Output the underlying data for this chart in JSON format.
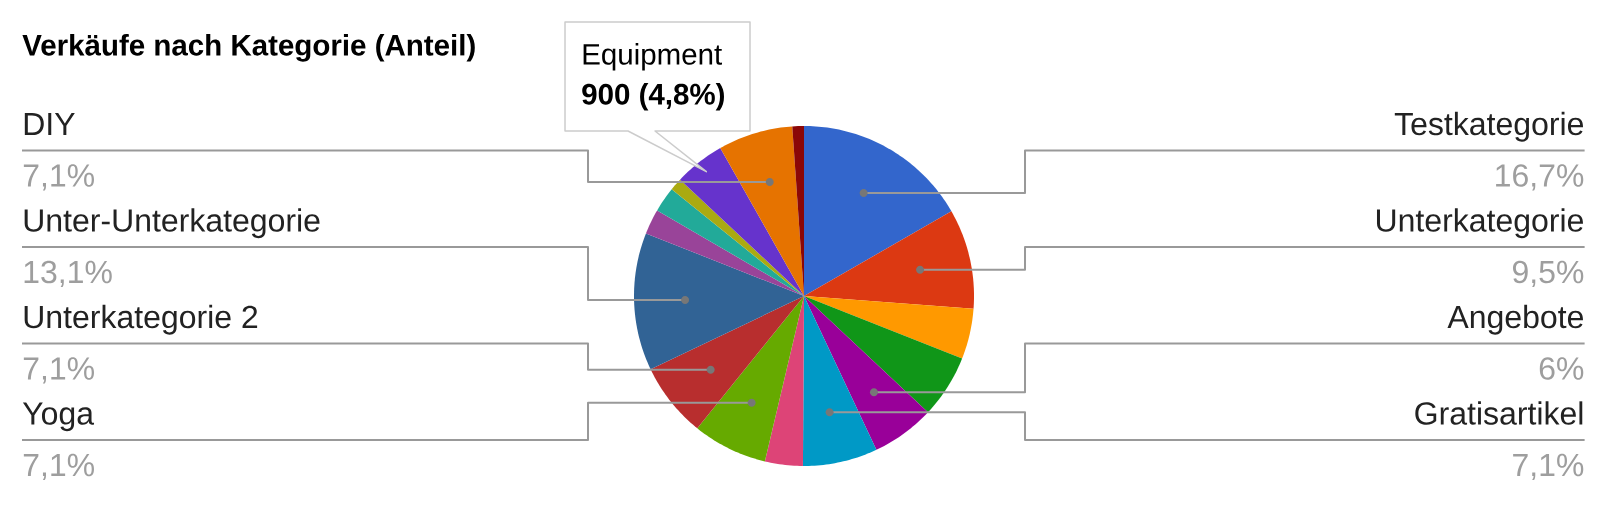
{
  "chart_data": {
    "type": "pie",
    "title": "Verkäufe nach Kategorie (Anteil)",
    "categories": [
      "Testkategorie",
      "Unterkategorie",
      null,
      null,
      "Angebote",
      "Gratisartikel",
      null,
      "Yoga",
      "Unterkategorie 2",
      "Unter-Unterkategorie",
      null,
      null,
      null,
      "Equipment",
      "DIY",
      null
    ],
    "values": [
      16.7,
      9.5,
      4.8,
      6,
      6,
      7.1,
      3.6,
      7.1,
      7.1,
      13.1,
      2.4,
      2.4,
      1.2,
      4.8,
      7.1,
      1.1
    ],
    "colors": [
      "#3366cc",
      "#dc3912",
      "#ff9900",
      "#109618",
      "#990099",
      "#0099c6",
      "#dd4477",
      "#66aa00",
      "#b82e2e",
      "#316395",
      "#994499",
      "#22aa99",
      "#aaaa11",
      "#6633cc",
      "#e67300",
      "#8b0707"
    ],
    "value_labels": [
      "16,7%",
      "9,5%",
      null,
      null,
      "6%",
      "7,1%",
      null,
      "7,1%",
      "7,1%",
      "13,1%",
      null,
      null,
      null,
      null,
      "7,1%",
      null
    ],
    "annotations": [
      "900 (4,8%)"
    ]
  }
}
